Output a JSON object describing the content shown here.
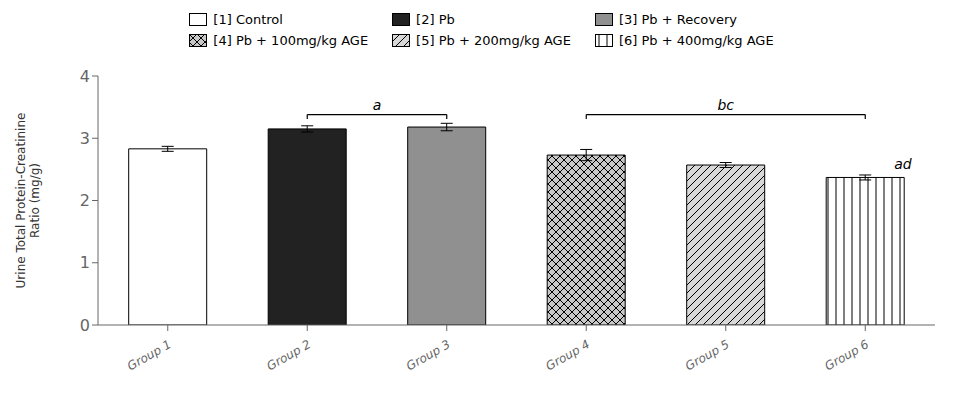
{
  "chart_data": {
    "type": "bar",
    "ylabel": "Urine Total Protein-Creatinine\nRatio (mg/g)",
    "categories": [
      "Group 1",
      "Group 2",
      "Group 3",
      "Group 4",
      "Group 5",
      "Group 6"
    ],
    "series": [
      {
        "name": "[1] Control",
        "color": "#ffffff",
        "values": [
          2.83,
          null,
          null,
          null,
          null,
          null
        ],
        "errors": [
          0.04,
          null,
          null,
          null,
          null,
          null
        ]
      },
      {
        "name": "[2] Pb",
        "color": "#222222",
        "values": [
          null,
          3.15,
          null,
          null,
          null,
          null
        ],
        "errors": [
          null,
          0.05,
          null,
          null,
          null,
          null
        ]
      },
      {
        "name": "[3] Pb + Recovery",
        "color": "#909090",
        "values": [
          null,
          null,
          3.18,
          null,
          null,
          null
        ],
        "errors": [
          null,
          null,
          0.06,
          null,
          null,
          null
        ]
      },
      {
        "name": "[4] Pb + 100mg/kg AGE",
        "color": "#c8c8c8",
        "values": [
          null,
          null,
          null,
          2.73,
          null,
          null
        ],
        "errors": [
          null,
          null,
          null,
          0.09,
          null,
          null
        ]
      },
      {
        "name": "[5] Pb + 200mg/kg AGE",
        "color": "#d8d8d8",
        "values": [
          null,
          null,
          null,
          null,
          2.57,
          null
        ],
        "errors": [
          null,
          null,
          null,
          null,
          0.04,
          null
        ]
      },
      {
        "name": "[6] Pb + 400mg/kg AGE",
        "color": "#ffffff",
        "values": [
          null,
          null,
          null,
          null,
          null,
          2.37
        ],
        "errors": [
          null,
          null,
          null,
          null,
          null,
          0.04
        ]
      }
    ],
    "ylim": [
      0,
      4
    ],
    "yticks": [
      0,
      1,
      2,
      3,
      4
    ],
    "legend": "top",
    "annotations": [
      {
        "label": "a",
        "from": "Group 2",
        "to": "Group 3",
        "y": 3.38
      },
      {
        "label": "bc",
        "from": "Group 4",
        "to": "Group 6",
        "y": 3.38
      },
      {
        "label": "ad",
        "category": "Group 6",
        "y": 2.48
      }
    ]
  }
}
